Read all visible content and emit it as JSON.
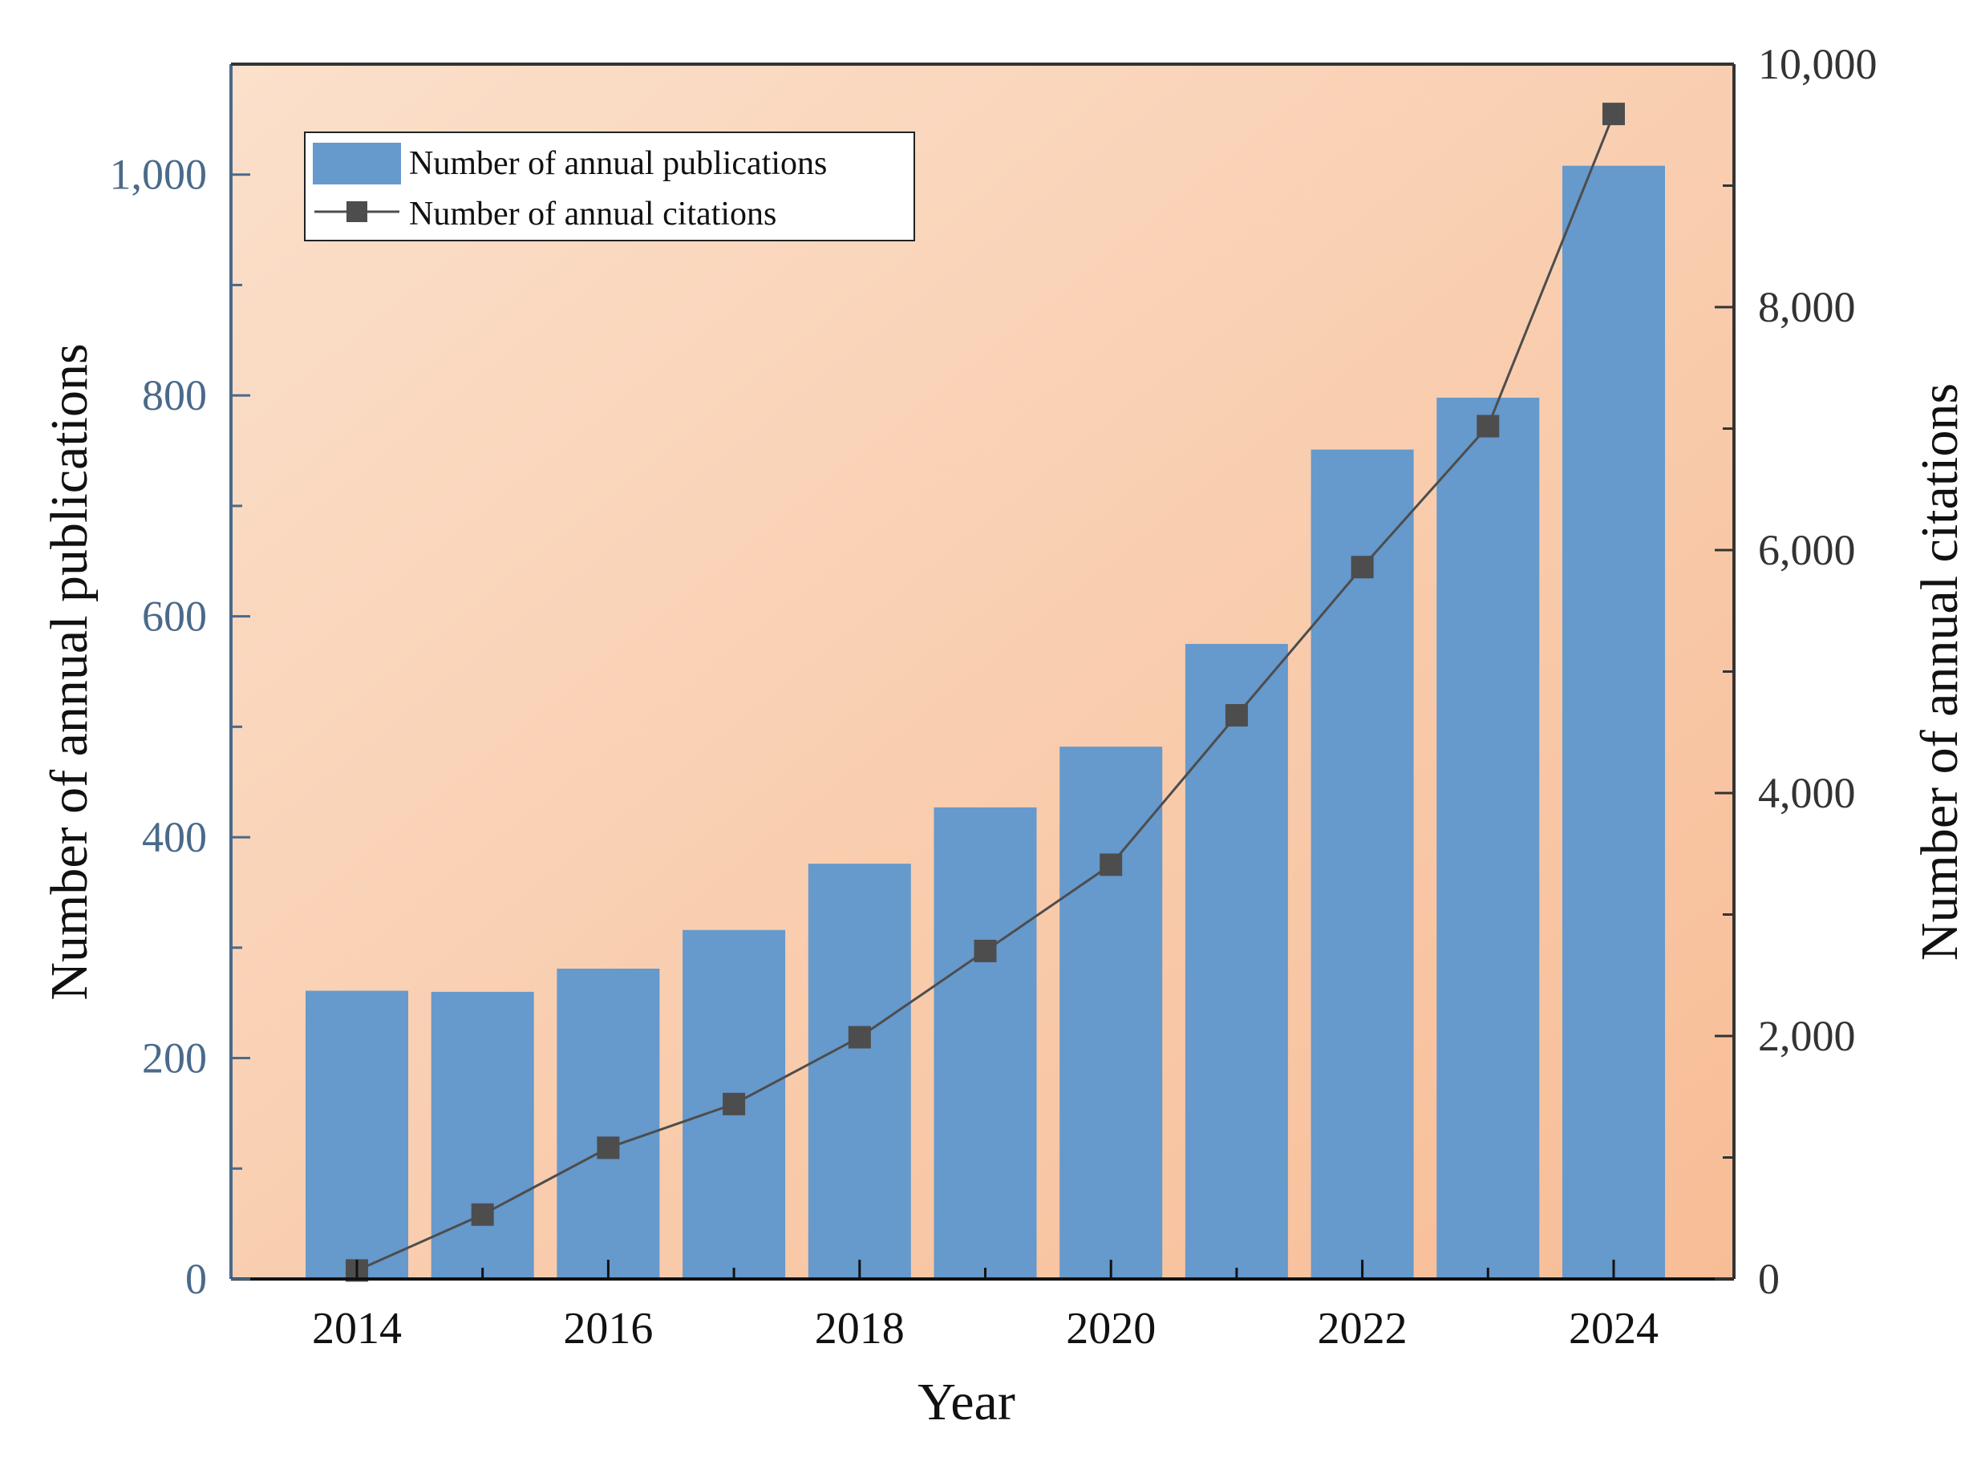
{
  "chart_data": {
    "type": "bar+line",
    "title": "",
    "xlabel": "Year",
    "ylabel_left": "Number of annual publications",
    "ylabel_right": "Number of annual citations",
    "categories": [
      2014,
      2015,
      2016,
      2017,
      2018,
      2019,
      2020,
      2021,
      2022,
      2023,
      2024
    ],
    "x_tick_labels": [
      "2014",
      "2016",
      "2018",
      "2020",
      "2022",
      "2024"
    ],
    "x_tick_values": [
      2014,
      2016,
      2018,
      2020,
      2022,
      2024
    ],
    "y_left_ticks": [
      0,
      200,
      400,
      600,
      800,
      1000
    ],
    "y_left_tick_labels": [
      "0",
      "200",
      "400",
      "600",
      "800",
      "1,000"
    ],
    "y_left_lim": [
      0,
      1100
    ],
    "y_right_ticks": [
      0,
      2000,
      4000,
      6000,
      8000,
      10000
    ],
    "y_right_tick_labels": [
      "0",
      "2,000",
      "4,000",
      "6,000",
      "8,000",
      "10,000"
    ],
    "y_right_lim": [
      0,
      10000
    ],
    "series": [
      {
        "name": "Number of annual publications",
        "type": "bar",
        "axis": "left",
        "color": "#6699cc",
        "values": [
          261,
          260,
          281,
          316,
          376,
          427,
          482,
          575,
          751,
          798,
          1008
        ]
      },
      {
        "name": "Number of annual citations",
        "type": "line",
        "axis": "right",
        "color": "#4d4d4d",
        "values": [
          70,
          530,
          1080,
          1440,
          1990,
          2700,
          3410,
          4640,
          5860,
          7020,
          9590
        ]
      }
    ],
    "legend_position": "top-left",
    "background_gradient": [
      "#fbe0cb",
      "#f7bd96"
    ]
  }
}
